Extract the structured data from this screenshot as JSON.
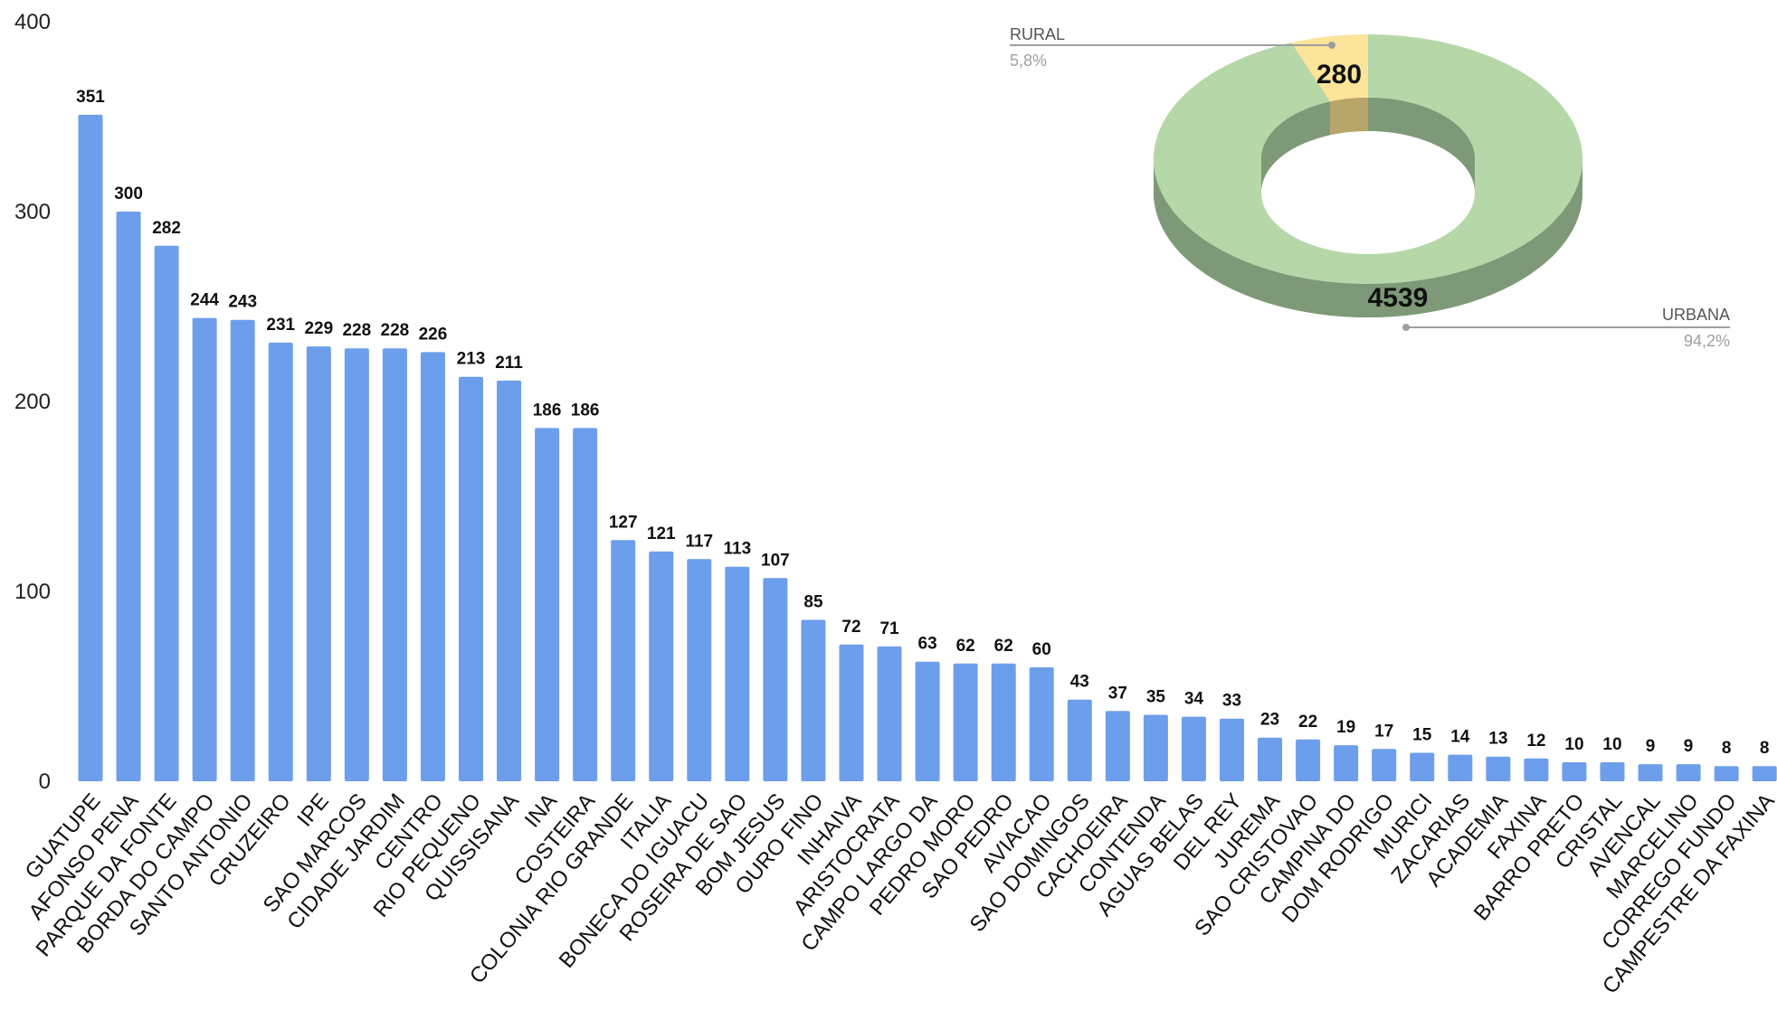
{
  "chart_data": [
    {
      "type": "bar",
      "title": "",
      "xlabel": "",
      "ylabel": "",
      "ylim": [
        0,
        400
      ],
      "yticks": [
        0,
        100,
        200,
        300,
        400
      ],
      "grid": false,
      "bar_color": "#6d9eeb",
      "categories": [
        "GUATUPE",
        "AFONSO PENA",
        "PARQUE DA FONTE",
        "BORDA DO CAMPO",
        "SANTO ANTONIO",
        "CRUZEIRO",
        "IPE",
        "SAO MARCOS",
        "CIDADE JARDIM",
        "CENTRO",
        "RIO PEQUENO",
        "QUISSISANA",
        "INA",
        "COSTEIRA",
        "COLONIA RIO GRANDE",
        "ITALIA",
        "BONECA DO IGUACU",
        "ROSEIRA DE SAO",
        "BOM JESUS",
        "OURO FINO",
        "INHAIVA",
        "ARISTOCRATA",
        "CAMPO LARGO DA",
        "PEDRO MORO",
        "SAO PEDRO",
        "AVIACAO",
        "SAO DOMINGOS",
        "CACHOEIRA",
        "CONTENDA",
        "AGUAS BELAS",
        "DEL REY",
        "JUREMA",
        "SAO CRISTOVAO",
        "CAMPINA DO",
        "DOM RODRIGO",
        "MURICI",
        "ZACARIAS",
        "ACADEMIA",
        "FAXINA",
        "BARRO PRETO",
        "CRISTAL",
        "AVENCAL",
        "MARCELINO",
        "CORREGO FUNDO",
        "CAMPESTRE DA FAXINA"
      ],
      "values": [
        351,
        300,
        282,
        244,
        243,
        231,
        229,
        228,
        228,
        226,
        213,
        211,
        186,
        186,
        127,
        121,
        117,
        113,
        107,
        85,
        72,
        71,
        63,
        62,
        62,
        60,
        43,
        37,
        35,
        34,
        33,
        23,
        22,
        19,
        17,
        15,
        14,
        13,
        12,
        10,
        10,
        9,
        9,
        8,
        8
      ]
    },
    {
      "type": "pie",
      "style": "3d-donut",
      "slices": [
        {
          "name": "RURAL",
          "value": 280,
          "percent_label": "5,8%",
          "color": "#fde49b",
          "side_color": "#b8a56a"
        },
        {
          "name": "URBANA",
          "value": 4539,
          "percent_label": "94,2%",
          "color": "#b6d7a8",
          "side_color": "#7e9977"
        }
      ]
    }
  ]
}
